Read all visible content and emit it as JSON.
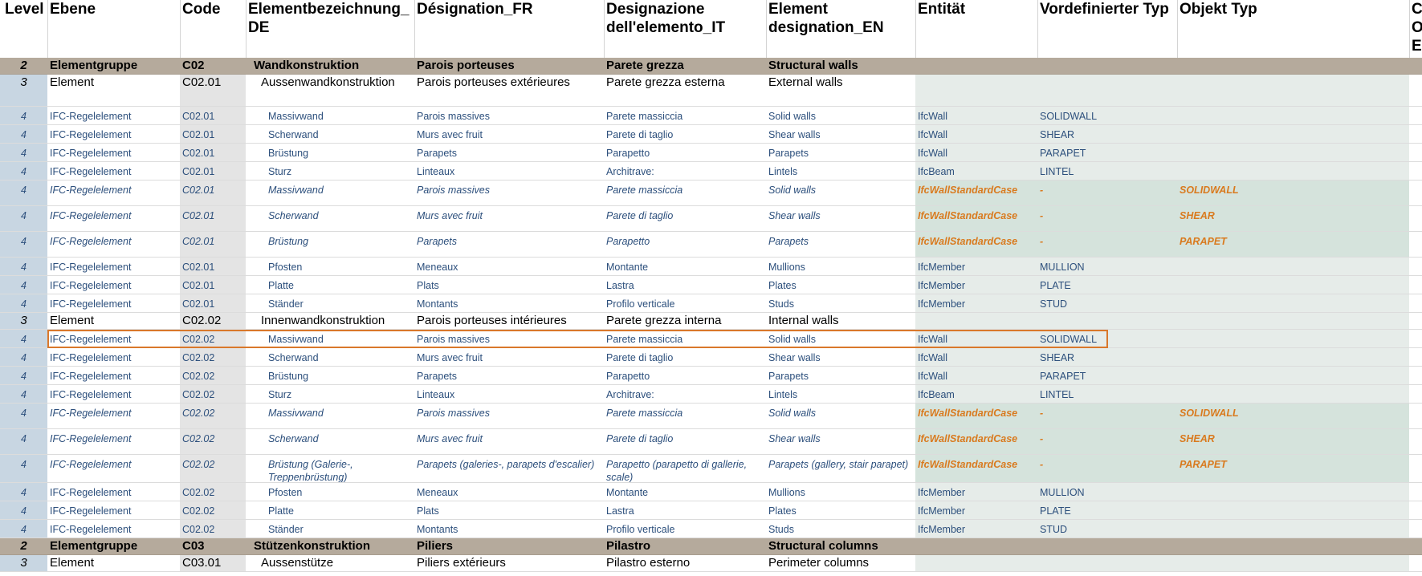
{
  "columns": [
    {
      "key": "level",
      "label": "Level"
    },
    {
      "key": "ebene",
      "label": "Ebene"
    },
    {
      "key": "code",
      "label": "Code"
    },
    {
      "key": "de",
      "label": "Elementbezeichnung_ DE"
    },
    {
      "key": "fr",
      "label": "Désignation_FR"
    },
    {
      "key": "it",
      "label": "Designazione dell'elemento_IT"
    },
    {
      "key": "en",
      "label": "Element designation_EN"
    },
    {
      "key": "entity",
      "label": "Entität"
    },
    {
      "key": "predef",
      "label": "Vordefinierter Typ"
    },
    {
      "key": "objtype",
      "label": "Objekt Typ"
    },
    {
      "key": "cut",
      "label": "C O E"
    }
  ],
  "rows": [
    {
      "kind": "r2",
      "level": "2",
      "ebene": "Elementgruppe",
      "code": "C02",
      "de": "Wandkonstruktion",
      "fr": "Parois porteuses",
      "it": "Parete grezza",
      "en": "Structural walls"
    },
    {
      "kind": "r3",
      "level": "3",
      "ebene": "Element",
      "code": "C02.01",
      "de": "Aussenwandkonstruktion",
      "fr": "Parois porteuses extérieures",
      "it": "Parete grezza esterna",
      "en": "External walls"
    },
    {
      "kind": "r4",
      "level": "4",
      "ebene": "IFC-Regelelement",
      "code": "C02.01",
      "de": "Massivwand",
      "fr": "Parois massives",
      "it": "Parete massiccia",
      "en": "Solid walls",
      "entity": "IfcWall",
      "predef": "SOLIDWALL"
    },
    {
      "kind": "r4",
      "level": "4",
      "ebene": "IFC-Regelelement",
      "code": "C02.01",
      "de": "Scherwand",
      "fr": "Murs avec fruit",
      "it": "Parete di taglio",
      "en": "Shear walls",
      "entity": "IfcWall",
      "predef": "SHEAR"
    },
    {
      "kind": "r4",
      "level": "4",
      "ebene": "IFC-Regelelement",
      "code": "C02.01",
      "de": "Brüstung",
      "fr": "Parapets",
      "it": "Parapetto",
      "en": "Parapets",
      "entity": "IfcWall",
      "predef": "PARAPET"
    },
    {
      "kind": "r4",
      "level": "4",
      "ebene": "IFC-Regelelement",
      "code": "C02.01",
      "de": "Sturz",
      "fr": "Linteaux",
      "it": "Architrave:",
      "en": "Lintels",
      "entity": "IfcBeam",
      "predef": "LINTEL"
    },
    {
      "kind": "r4i",
      "level": "4",
      "ebene": "IFC-Regelelement",
      "code": "C02.01",
      "de": "Massivwand",
      "fr": "Parois massives",
      "it": "Parete massiccia",
      "en": "Solid walls",
      "entity": "IfcWallStandardCase",
      "predef": "-",
      "objtype": "SOLIDWALL"
    },
    {
      "kind": "r4i",
      "level": "4",
      "ebene": "IFC-Regelelement",
      "code": "C02.01",
      "de": "Scherwand",
      "fr": "Murs avec fruit",
      "it": "Parete di taglio",
      "en": "Shear walls",
      "entity": "IfcWallStandardCase",
      "predef": "-",
      "objtype": "SHEAR"
    },
    {
      "kind": "r4i",
      "level": "4",
      "ebene": "IFC-Regelelement",
      "code": "C02.01",
      "de": "Brüstung",
      "fr": "Parapets",
      "it": "Parapetto",
      "en": "Parapets",
      "entity": "IfcWallStandardCase",
      "predef": "-",
      "objtype": "PARAPET"
    },
    {
      "kind": "r4",
      "level": "4",
      "ebene": "IFC-Regelelement",
      "code": "C02.01",
      "de": "Pfosten",
      "fr": "Meneaux",
      "it": "Montante",
      "en": "Mullions",
      "entity": "IfcMember",
      "predef": "MULLION"
    },
    {
      "kind": "r4",
      "level": "4",
      "ebene": "IFC-Regelelement",
      "code": "C02.01",
      "de": "Platte",
      "fr": "Plats",
      "it": "Lastra",
      "en": "Plates",
      "entity": "IfcMember",
      "predef": "PLATE"
    },
    {
      "kind": "r4",
      "level": "4",
      "ebene": "IFC-Regelelement",
      "code": "C02.01",
      "de": "Ständer",
      "fr": "Montants",
      "it": "Profilo verticale",
      "en": "Studs",
      "entity": "IfcMember",
      "predef": "STUD"
    },
    {
      "kind": "r3",
      "level": "3",
      "ebene": "Element",
      "code": "C02.02",
      "de": "Innenwandkonstruktion",
      "fr": "Parois porteuses intérieures",
      "it": "Parete grezza interna",
      "en": "Internal walls"
    },
    {
      "kind": "r4",
      "level": "4",
      "ebene": "IFC-Regelelement",
      "code": "C02.02",
      "de": "Massivwand",
      "fr": "Parois massives",
      "it": "Parete massiccia",
      "en": "Solid walls",
      "entity": "IfcWall",
      "predef": "SOLIDWALL",
      "selected": true
    },
    {
      "kind": "r4",
      "level": "4",
      "ebene": "IFC-Regelelement",
      "code": "C02.02",
      "de": "Scherwand",
      "fr": "Murs avec fruit",
      "it": "Parete di taglio",
      "en": "Shear walls",
      "entity": "IfcWall",
      "predef": "SHEAR"
    },
    {
      "kind": "r4",
      "level": "4",
      "ebene": "IFC-Regelelement",
      "code": "C02.02",
      "de": "Brüstung",
      "fr": "Parapets",
      "it": "Parapetto",
      "en": "Parapets",
      "entity": "IfcWall",
      "predef": "PARAPET"
    },
    {
      "kind": "r4",
      "level": "4",
      "ebene": "IFC-Regelelement",
      "code": "C02.02",
      "de": "Sturz",
      "fr": "Linteaux",
      "it": "Architrave:",
      "en": "Lintels",
      "entity": "IfcBeam",
      "predef": "LINTEL"
    },
    {
      "kind": "r4i",
      "level": "4",
      "ebene": "IFC-Regelelement",
      "code": "C02.02",
      "de": "Massivwand",
      "fr": "Parois massives",
      "it": "Parete massiccia",
      "en": "Solid walls",
      "entity": "IfcWallStandardCase",
      "predef": "-",
      "objtype": "SOLIDWALL"
    },
    {
      "kind": "r4i",
      "level": "4",
      "ebene": "IFC-Regelelement",
      "code": "C02.02",
      "de": "Scherwand",
      "fr": "Murs avec fruit",
      "it": "Parete di taglio",
      "en": "Shear walls",
      "entity": "IfcWallStandardCase",
      "predef": "-",
      "objtype": "SHEAR"
    },
    {
      "kind": "r4i",
      "level": "4",
      "ebene": "IFC-Regelelement",
      "code": "C02.02",
      "de": "Brüstung (Galerie-, Treppenbrüstung)",
      "fr": "Parapets (galeries-, parapets d'escalier)",
      "it": "Parapetto (parapetto di gallerie, scale)",
      "en": "Parapets (gallery, stair parapet)",
      "entity": "IfcWallStandardCase",
      "predef": "-",
      "objtype": "PARAPET"
    },
    {
      "kind": "r4",
      "level": "4",
      "ebene": "IFC-Regelelement",
      "code": "C02.02",
      "de": "Pfosten",
      "fr": "Meneaux",
      "it": "Montante",
      "en": "Mullions",
      "entity": "IfcMember",
      "predef": "MULLION"
    },
    {
      "kind": "r4",
      "level": "4",
      "ebene": "IFC-Regelelement",
      "code": "C02.02",
      "de": "Platte",
      "fr": "Plats",
      "it": "Lastra",
      "en": "Plates",
      "entity": "IfcMember",
      "predef": "PLATE"
    },
    {
      "kind": "r4",
      "level": "4",
      "ebene": "IFC-Regelelement",
      "code": "C02.02",
      "de": "Ständer",
      "fr": "Montants",
      "it": "Profilo verticale",
      "en": "Studs",
      "entity": "IfcMember",
      "predef": "STUD"
    },
    {
      "kind": "r2",
      "level": "2",
      "ebene": "Elementgruppe",
      "code": "C03",
      "de": "Stützenkonstruktion",
      "fr": "Piliers",
      "it": "Pilastro",
      "en": "Structural columns"
    },
    {
      "kind": "r3",
      "level": "3",
      "ebene": "Element",
      "code": "C03.01",
      "de": "Aussenstütze",
      "fr": "Piliers extérieurs",
      "it": "Pilastro esterno",
      "en": "Perimeter columns"
    }
  ],
  "colors": {
    "group_row_bg": "#b5aa9c",
    "level_col_bg": "#c8d6e2",
    "code_col_bg": "#e4e4e4",
    "ifc_area_bg": "#e6ece9",
    "ifc_italic_bg": "#d5e3dc",
    "text_blue": "#2c4f7c",
    "text_orange": "#d97a1e",
    "selection_border": "#d9782b"
  }
}
